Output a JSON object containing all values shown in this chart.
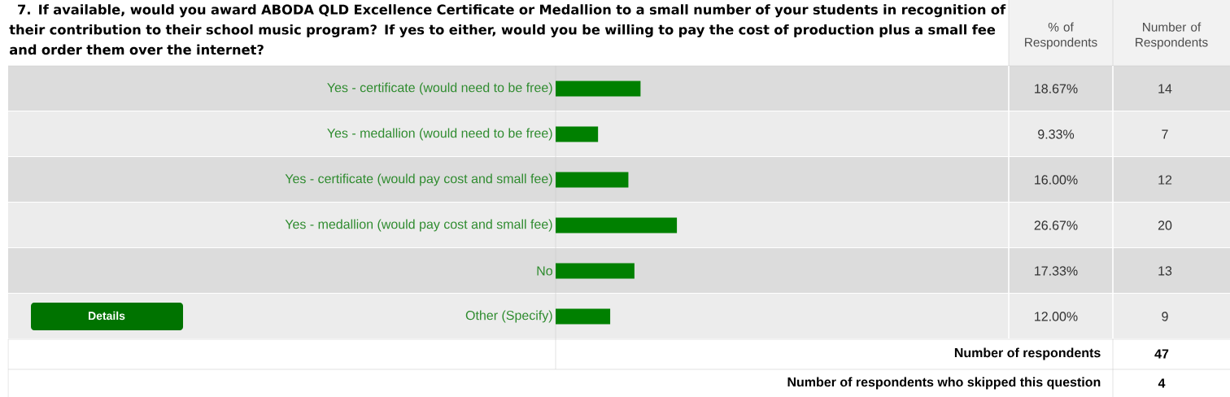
{
  "chart_data": {
    "type": "bar",
    "orientation": "horizontal",
    "title": "7. If available, would you award ABODA QLD Excellence Certificate or Medallion to a small number of your students in recognition of their contribution to their school music program? If yes to either, would you be willing to pay the cost of production plus a small fee and order them over the internet?",
    "categories": [
      "Yes - certificate (would need to be free)",
      "Yes - medallion (would need to be free)",
      "Yes - certificate (would pay cost and small fee)",
      "Yes - medallion (would pay cost and small fee)",
      "No",
      "Other (Specify)"
    ],
    "values": [
      18.67,
      9.33,
      16.0,
      26.67,
      17.33,
      12.0
    ],
    "value_labels": [
      "18.67%",
      "9.33%",
      "16.00%",
      "26.67%",
      "17.33%",
      "12.00%"
    ],
    "color": "#008000",
    "tick_labels": "y",
    "annotations": [
      "% of Respondents",
      "Number of Respondents",
      "14",
      "7",
      "12",
      "20",
      "13",
      "9",
      "Number of respondents",
      "47",
      "Number of respondents who skipped this question",
      "4",
      "Details"
    ]
  }
}
